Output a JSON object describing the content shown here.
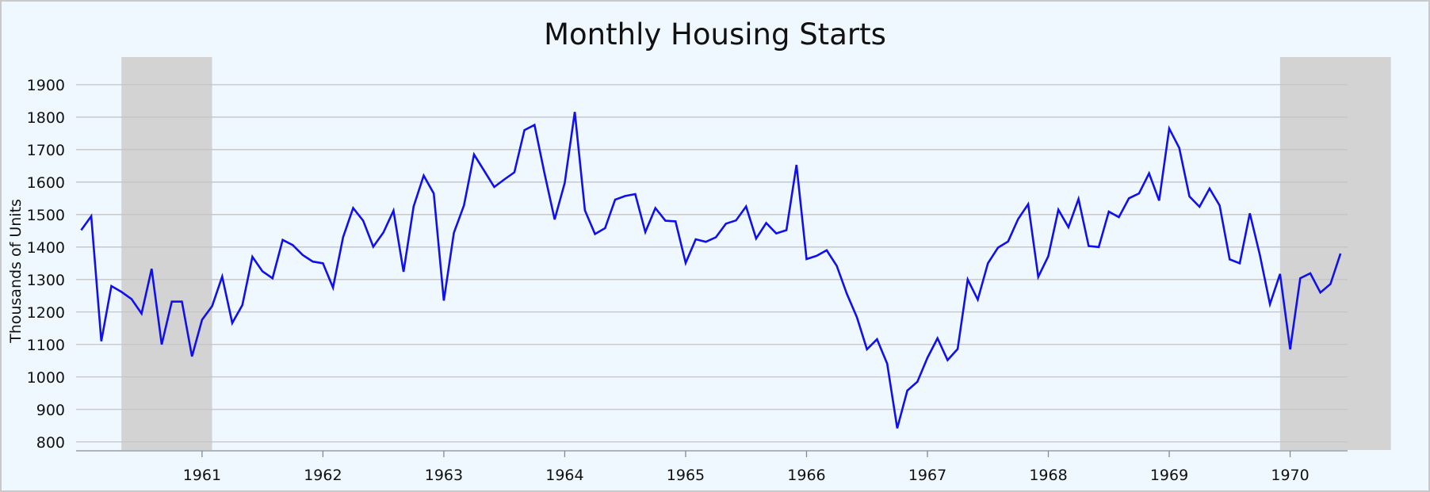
{
  "chart_data": {
    "type": "line",
    "title": "Monthly Housing Starts",
    "ylabel": "Thousands of Units",
    "xlabel": "",
    "ylim": [
      775,
      1985
    ],
    "yticks": [
      800,
      900,
      1000,
      1100,
      1200,
      1300,
      1400,
      1500,
      1600,
      1700,
      1800,
      1900
    ],
    "xticks": [
      "1961",
      "1962",
      "1963",
      "1964",
      "1965",
      "1966",
      "1967",
      "1968",
      "1969",
      "1970"
    ],
    "x_start": "1960-01",
    "grid": true,
    "line_color": "#1010ee",
    "recession_color": "#d3d3d3",
    "recessions": [
      {
        "start": "1960-05",
        "end": "1961-02"
      },
      {
        "start": "1969-12",
        "end": "1970-11"
      }
    ],
    "series": [
      {
        "values": [
          1452,
          1495,
          1110,
          1280,
          1262,
          1240,
          1195,
          1333,
          1100,
          1232,
          1232,
          1063,
          1176,
          1218,
          1309,
          1166,
          1221,
          1370,
          1325,
          1304,
          1422,
          1406,
          1375,
          1355,
          1350,
          1275,
          1430,
          1520,
          1481,
          1401,
          1445,
          1512,
          1324,
          1525,
          1620,
          1565,
          1235,
          1444,
          1528,
          1685,
          1635,
          1585,
          1608,
          1630,
          1760,
          1776,
          1626,
          1485,
          1597,
          1816,
          1513,
          1440,
          1458,
          1546,
          1557,
          1563,
          1446,
          1520,
          1481,
          1479,
          1351,
          1424,
          1416,
          1430,
          1472,
          1482,
          1525,
          1426,
          1474,
          1442,
          1452,
          1653,
          1363,
          1373,
          1390,
          1342,
          1256,
          1184,
          1085,
          1116,
          1041,
          842,
          958,
          985,
          1059,
          1119,
          1052,
          1086,
          1300,
          1238,
          1350,
          1398,
          1417,
          1486,
          1532,
          1308,
          1372,
          1515,
          1461,
          1548,
          1403,
          1400,
          1509,
          1492,
          1550,
          1565,
          1627,
          1543,
          1765,
          1705,
          1556,
          1524,
          1580,
          1528,
          1362,
          1350,
          1504,
          1375,
          1224,
          1317,
          1085,
          1304,
          1319,
          1260,
          1286,
          1380
        ]
      }
    ]
  }
}
